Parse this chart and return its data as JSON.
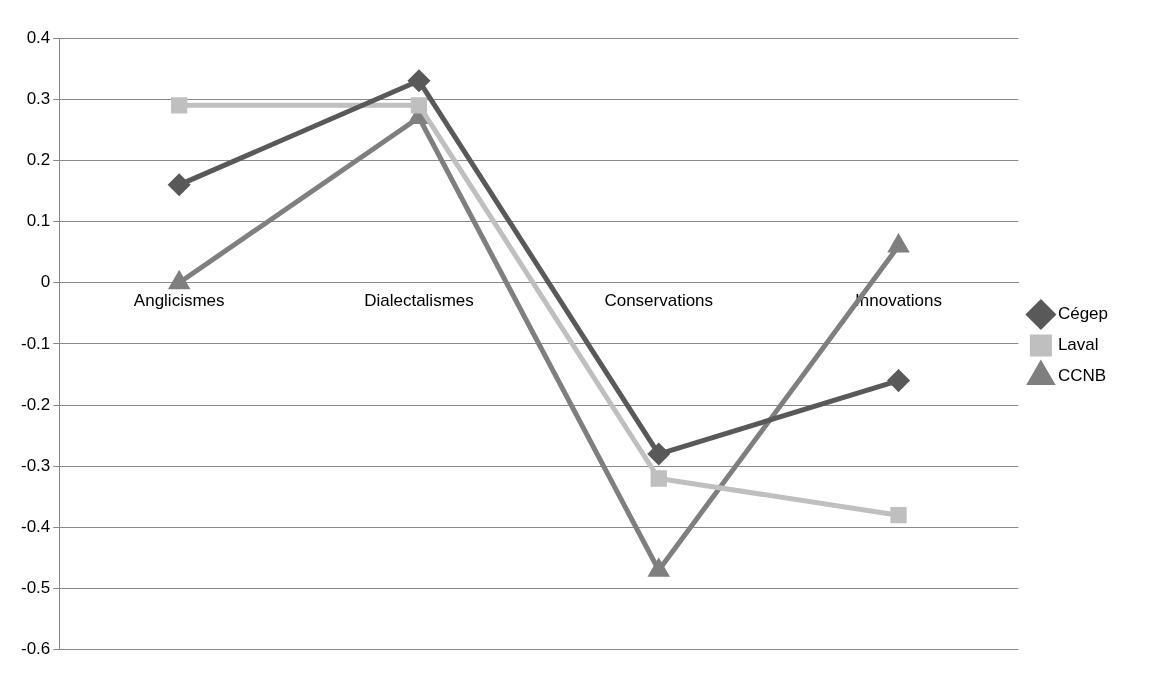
{
  "chart_data": {
    "type": "line",
    "categories": [
      "Anglicismes",
      "Dialectalismes",
      "Conservations",
      "Innovations"
    ],
    "series": [
      {
        "name": "Cégep",
        "color": "#595959",
        "marker": "diamond",
        "values": [
          0.16,
          0.33,
          -0.28,
          -0.16
        ]
      },
      {
        "name": "Laval",
        "color": "#bfbfbf",
        "marker": "square",
        "values": [
          0.29,
          0.29,
          -0.32,
          -0.38
        ]
      },
      {
        "name": "CCNB",
        "color": "#7f7f7f",
        "marker": "triangle",
        "values": [
          0,
          0.27,
          -0.47,
          0.06
        ]
      }
    ],
    "ylim": [
      -0.6,
      0.4
    ],
    "yticks": [
      -0.6,
      -0.5,
      -0.4,
      -0.3,
      -0.2,
      -0.1,
      0,
      0.1,
      0.2,
      0.3,
      0.4
    ],
    "grid": "y",
    "legend": "right",
    "line_style": "solid"
  }
}
